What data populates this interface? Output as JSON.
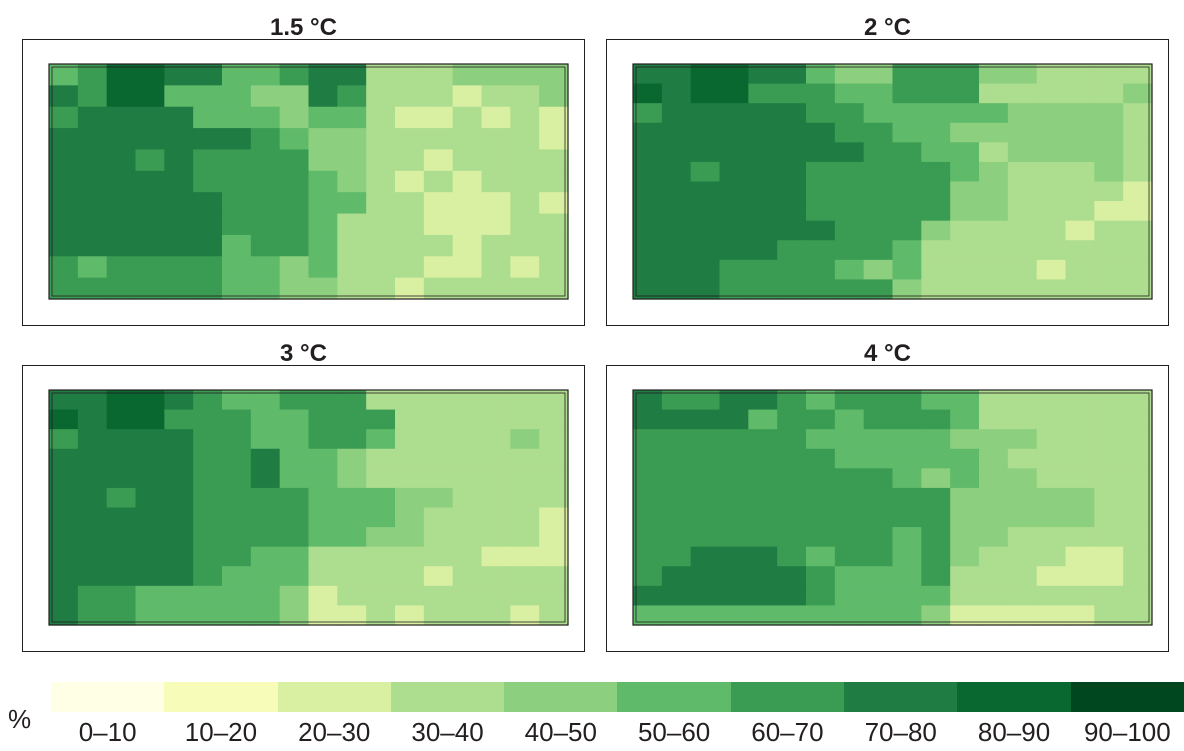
{
  "chart_data": {
    "type": "heatmap",
    "unit": "%",
    "legend": {
      "bins": [
        "0–10",
        "10–20",
        "20–30",
        "30–40",
        "40–50",
        "50–60",
        "60–70",
        "70–80",
        "80–90",
        "90–100"
      ],
      "colors": [
        "#ffffe5",
        "#f7fcb9",
        "#d9f0a3",
        "#addd8e",
        "#8ccf7f",
        "#5fba6a",
        "#3a9c53",
        "#1f7c43",
        "#086830",
        "#00461e"
      ]
    },
    "panels": [
      {
        "title": "1.5 °C",
        "grid": [
          [
            5,
            6,
            8,
            8,
            7,
            7,
            5,
            5,
            6,
            7,
            7,
            3,
            3,
            3,
            4,
            4,
            4,
            4
          ],
          [
            7,
            6,
            8,
            8,
            5,
            5,
            5,
            4,
            4,
            7,
            6,
            3,
            3,
            3,
            2,
            3,
            3,
            4
          ],
          [
            6,
            7,
            7,
            7,
            7,
            5,
            5,
            5,
            4,
            5,
            5,
            3,
            2,
            2,
            3,
            2,
            3,
            2
          ],
          [
            7,
            7,
            7,
            7,
            7,
            7,
            7,
            6,
            5,
            4,
            4,
            3,
            3,
            3,
            3,
            3,
            3,
            2
          ],
          [
            7,
            7,
            7,
            6,
            7,
            6,
            6,
            6,
            6,
            4,
            4,
            3,
            3,
            2,
            3,
            3,
            3,
            3
          ],
          [
            7,
            7,
            7,
            7,
            7,
            6,
            6,
            6,
            6,
            5,
            4,
            3,
            2,
            3,
            2,
            3,
            3,
            3
          ],
          [
            7,
            7,
            7,
            7,
            7,
            7,
            6,
            6,
            6,
            5,
            5,
            3,
            3,
            2,
            2,
            2,
            3,
            2
          ],
          [
            7,
            7,
            7,
            7,
            7,
            7,
            6,
            6,
            6,
            5,
            3,
            3,
            3,
            2,
            2,
            2,
            3,
            3
          ],
          [
            7,
            7,
            7,
            7,
            7,
            7,
            5,
            6,
            6,
            5,
            3,
            3,
            3,
            3,
            2,
            3,
            3,
            3
          ],
          [
            6,
            5,
            6,
            6,
            6,
            6,
            5,
            5,
            4,
            5,
            3,
            3,
            3,
            2,
            2,
            3,
            2,
            3
          ],
          [
            6,
            6,
            6,
            6,
            6,
            6,
            5,
            5,
            4,
            4,
            3,
            3,
            2,
            3,
            3,
            3,
            3,
            3
          ]
        ]
      },
      {
        "title": "2 °C",
        "grid": [
          [
            7,
            7,
            8,
            8,
            7,
            7,
            5,
            4,
            4,
            6,
            6,
            6,
            4,
            4,
            3,
            3,
            3,
            3
          ],
          [
            8,
            7,
            8,
            8,
            6,
            6,
            6,
            5,
            5,
            6,
            6,
            6,
            3,
            3,
            3,
            3,
            3,
            4
          ],
          [
            6,
            7,
            7,
            7,
            7,
            7,
            6,
            6,
            5,
            5,
            5,
            5,
            5,
            4,
            4,
            4,
            4,
            3
          ],
          [
            7,
            7,
            7,
            7,
            7,
            7,
            7,
            6,
            6,
            5,
            5,
            4,
            4,
            4,
            4,
            4,
            4,
            3
          ],
          [
            7,
            7,
            7,
            7,
            7,
            7,
            7,
            7,
            6,
            6,
            5,
            5,
            3,
            4,
            4,
            4,
            4,
            3
          ],
          [
            7,
            7,
            6,
            7,
            7,
            7,
            6,
            6,
            6,
            6,
            6,
            5,
            4,
            3,
            3,
            3,
            4,
            3
          ],
          [
            7,
            7,
            7,
            7,
            7,
            7,
            6,
            6,
            6,
            6,
            6,
            4,
            4,
            3,
            3,
            3,
            3,
            2
          ],
          [
            7,
            7,
            7,
            7,
            7,
            7,
            6,
            6,
            6,
            6,
            6,
            4,
            4,
            3,
            3,
            3,
            2,
            2
          ],
          [
            7,
            7,
            7,
            7,
            7,
            7,
            7,
            6,
            6,
            6,
            4,
            3,
            3,
            3,
            3,
            2,
            3,
            3
          ],
          [
            7,
            7,
            7,
            7,
            7,
            6,
            6,
            6,
            6,
            5,
            3,
            3,
            3,
            3,
            3,
            3,
            3,
            3
          ],
          [
            7,
            7,
            7,
            6,
            6,
            6,
            6,
            5,
            4,
            5,
            3,
            3,
            3,
            3,
            2,
            3,
            3,
            3
          ],
          [
            7,
            7,
            7,
            6,
            6,
            6,
            6,
            6,
            6,
            4,
            3,
            3,
            3,
            3,
            3,
            3,
            3,
            3
          ]
        ]
      },
      {
        "title": "3 °C",
        "grid": [
          [
            7,
            7,
            8,
            8,
            7,
            6,
            5,
            5,
            6,
            6,
            6,
            3,
            3,
            3,
            3,
            3,
            3,
            3
          ],
          [
            8,
            7,
            8,
            8,
            6,
            6,
            6,
            5,
            5,
            6,
            6,
            6,
            3,
            3,
            3,
            3,
            3,
            3
          ],
          [
            6,
            7,
            7,
            7,
            7,
            6,
            6,
            5,
            5,
            6,
            6,
            5,
            3,
            3,
            3,
            3,
            4,
            3
          ],
          [
            7,
            7,
            7,
            7,
            7,
            6,
            6,
            7,
            5,
            5,
            4,
            3,
            3,
            3,
            3,
            3,
            3,
            3
          ],
          [
            7,
            7,
            7,
            7,
            7,
            6,
            6,
            7,
            5,
            5,
            4,
            3,
            3,
            3,
            3,
            3,
            3,
            3
          ],
          [
            7,
            7,
            6,
            7,
            7,
            6,
            6,
            6,
            6,
            5,
            5,
            5,
            4,
            4,
            3,
            3,
            3,
            3
          ],
          [
            7,
            7,
            7,
            7,
            7,
            6,
            6,
            6,
            6,
            5,
            5,
            5,
            4,
            3,
            3,
            3,
            3,
            2
          ],
          [
            7,
            7,
            7,
            7,
            7,
            6,
            6,
            6,
            6,
            5,
            5,
            4,
            4,
            3,
            3,
            3,
            3,
            2
          ],
          [
            7,
            7,
            7,
            7,
            7,
            6,
            6,
            5,
            5,
            3,
            3,
            3,
            3,
            3,
            3,
            2,
            2,
            2
          ],
          [
            7,
            7,
            7,
            7,
            7,
            6,
            5,
            5,
            5,
            3,
            3,
            3,
            3,
            2,
            3,
            3,
            3,
            3
          ],
          [
            7,
            6,
            6,
            5,
            5,
            5,
            5,
            5,
            4,
            2,
            3,
            3,
            3,
            3,
            3,
            3,
            3,
            3
          ],
          [
            7,
            6,
            6,
            5,
            5,
            5,
            5,
            5,
            4,
            2,
            2,
            3,
            2,
            3,
            3,
            3,
            2,
            3
          ]
        ]
      },
      {
        "title": "4 °C",
        "grid": [
          [
            7,
            6,
            6,
            7,
            7,
            6,
            5,
            6,
            6,
            6,
            5,
            5,
            3,
            3,
            3,
            3,
            3,
            3
          ],
          [
            7,
            7,
            7,
            7,
            5,
            6,
            6,
            5,
            6,
            6,
            6,
            5,
            3,
            3,
            3,
            3,
            3,
            3
          ],
          [
            6,
            6,
            6,
            6,
            6,
            6,
            5,
            5,
            5,
            5,
            5,
            4,
            4,
            4,
            3,
            3,
            3,
            3
          ],
          [
            6,
            6,
            6,
            6,
            6,
            6,
            6,
            5,
            5,
            5,
            5,
            5,
            4,
            3,
            3,
            3,
            3,
            3
          ],
          [
            6,
            6,
            6,
            6,
            6,
            6,
            6,
            6,
            6,
            5,
            4,
            5,
            4,
            4,
            3,
            3,
            3,
            3
          ],
          [
            6,
            6,
            6,
            6,
            6,
            6,
            6,
            6,
            6,
            6,
            6,
            4,
            4,
            4,
            4,
            4,
            3,
            3
          ],
          [
            6,
            6,
            6,
            6,
            6,
            6,
            6,
            6,
            6,
            6,
            6,
            4,
            4,
            4,
            4,
            4,
            3,
            3
          ],
          [
            6,
            6,
            6,
            6,
            6,
            6,
            6,
            6,
            6,
            5,
            6,
            4,
            4,
            3,
            3,
            3,
            3,
            3
          ],
          [
            6,
            6,
            7,
            7,
            7,
            6,
            5,
            6,
            6,
            5,
            6,
            4,
            3,
            3,
            3,
            2,
            2,
            3
          ],
          [
            6,
            7,
            7,
            7,
            7,
            7,
            6,
            5,
            5,
            5,
            6,
            3,
            3,
            3,
            2,
            2,
            2,
            3
          ],
          [
            7,
            7,
            7,
            7,
            7,
            7,
            6,
            5,
            5,
            5,
            5,
            3,
            3,
            3,
            3,
            3,
            3,
            3
          ],
          [
            5,
            5,
            5,
            5,
            5,
            5,
            5,
            5,
            5,
            5,
            4,
            2,
            2,
            2,
            2,
            2,
            3,
            3
          ]
        ]
      }
    ]
  }
}
